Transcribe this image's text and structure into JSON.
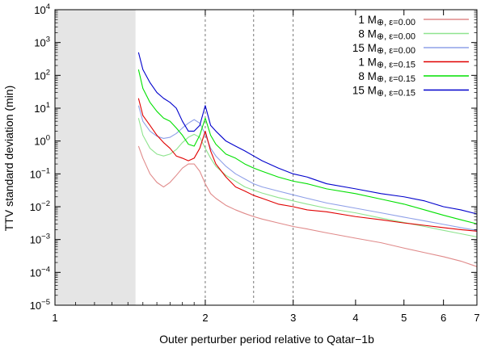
{
  "chart_data": {
    "type": "line",
    "title": "",
    "xlabel": "Outer perturber period relative to Qatar−1b",
    "ylabel": "TTV standard deviation (min)",
    "xscale": "log",
    "yscale": "log",
    "xlim": [
      1,
      7
    ],
    "ylim": [
      1e-05,
      10000.0
    ],
    "grid": false,
    "legend_position": "top-right",
    "x_ticks": [
      {
        "value": 1,
        "label": "1"
      },
      {
        "value": 2,
        "label": "2"
      },
      {
        "value": 3,
        "label": "3"
      },
      {
        "value": 4,
        "label": "4"
      },
      {
        "value": 5,
        "label": "5"
      },
      {
        "value": 6,
        "label": "6"
      },
      {
        "value": 7,
        "label": "7"
      }
    ],
    "y_ticks": [
      {
        "value": 1e-05,
        "base": "10",
        "exp": "−5"
      },
      {
        "value": 0.0001,
        "base": "10",
        "exp": "−4"
      },
      {
        "value": 0.001,
        "base": "10",
        "exp": "−3"
      },
      {
        "value": 0.01,
        "base": "10",
        "exp": "−2"
      },
      {
        "value": 0.1,
        "base": "10",
        "exp": "−1"
      },
      {
        "value": 1,
        "base": "10",
        "exp": "0"
      },
      {
        "value": 10,
        "base": "10",
        "exp": "1"
      },
      {
        "value": 100,
        "base": "10",
        "exp": "2"
      },
      {
        "value": 1000,
        "base": "10",
        "exp": "3"
      },
      {
        "value": 10000,
        "base": "10",
        "exp": "4"
      }
    ],
    "excluded_region": {
      "x_start": 1,
      "x_end": 1.45,
      "color": "#e5e5e5"
    },
    "vertical_lines": [
      2,
      2.5,
      3
    ],
    "series": [
      {
        "name": "1 M⊕, ε=0.00",
        "label_main": "1 M",
        "label_sub": "⊕, ε=0.00",
        "color": "#e08a8a",
        "x": [
          1.47,
          1.5,
          1.55,
          1.6,
          1.65,
          1.7,
          1.75,
          1.8,
          1.85,
          1.9,
          1.95,
          2.0,
          2.05,
          2.1,
          2.2,
          2.3,
          2.4,
          2.5,
          2.6,
          2.8,
          3.0,
          3.2,
          3.5,
          4.0,
          4.5,
          5.0,
          5.5,
          6.0,
          6.5,
          7.0
        ],
        "y": [
          0.7,
          0.3,
          0.1,
          0.055,
          0.04,
          0.055,
          0.09,
          0.15,
          0.2,
          0.2,
          0.12,
          0.05,
          0.025,
          0.018,
          0.011,
          0.008,
          0.0062,
          0.005,
          0.0042,
          0.0032,
          0.0025,
          0.0021,
          0.0016,
          0.0011,
          0.0008,
          0.00055,
          0.0004,
          0.0003,
          0.00022,
          0.00015
        ]
      },
      {
        "name": "8 M⊕, ε=0.00",
        "label_main": "8 M",
        "label_sub": "⊕, ε=0.00",
        "color": "#8fe48f",
        "x": [
          1.47,
          1.5,
          1.55,
          1.6,
          1.65,
          1.7,
          1.75,
          1.8,
          1.85,
          1.9,
          1.95,
          2.0,
          2.05,
          2.1,
          2.2,
          2.3,
          2.4,
          2.5,
          2.6,
          2.8,
          3.0,
          3.2,
          3.5,
          4.0,
          4.5,
          5.0,
          5.5,
          6.0,
          6.5,
          7.0
        ],
        "y": [
          5,
          1.5,
          0.6,
          0.4,
          0.35,
          0.4,
          0.55,
          0.9,
          1.3,
          1.6,
          1.3,
          0.6,
          0.3,
          0.17,
          0.09,
          0.06,
          0.04,
          0.032,
          0.026,
          0.019,
          0.015,
          0.012,
          0.009,
          0.0065,
          0.0045,
          0.0033,
          0.0025,
          0.0019,
          0.0015,
          0.0012
        ]
      },
      {
        "name": "15 M⊕, ε=0.00",
        "label_main": "15 M",
        "label_sub": "⊕, ε=0.00",
        "color": "#8fa0e8",
        "x": [
          1.47,
          1.5,
          1.55,
          1.6,
          1.65,
          1.7,
          1.75,
          1.8,
          1.85,
          1.9,
          1.95,
          2.0,
          2.05,
          2.1,
          2.2,
          2.3,
          2.4,
          2.5,
          2.6,
          2.8,
          3.0,
          3.2,
          3.5,
          4.0,
          4.5,
          5.0,
          5.5,
          6.0,
          6.5,
          7.0
        ],
        "y": [
          12,
          4,
          2,
          1.4,
          1.2,
          1.3,
          1.7,
          2.5,
          3.5,
          4.5,
          3.5,
          1.6,
          0.6,
          0.35,
          0.17,
          0.1,
          0.07,
          0.05,
          0.04,
          0.03,
          0.023,
          0.018,
          0.013,
          0.009,
          0.0065,
          0.0048,
          0.0037,
          0.0029,
          0.0023,
          0.0019
        ]
      },
      {
        "name": "1 M⊕, ε=0.15",
        "label_main": "1 M",
        "label_sub": "⊕, ε=0.15",
        "color": "#e00000",
        "x": [
          1.47,
          1.5,
          1.55,
          1.6,
          1.65,
          1.7,
          1.75,
          1.8,
          1.85,
          1.9,
          1.95,
          2.0,
          2.05,
          2.1,
          2.2,
          2.3,
          2.4,
          2.5,
          2.6,
          2.8,
          3.0,
          3.2,
          3.5,
          4.0,
          4.5,
          5.0,
          5.5,
          6.0,
          6.5,
          7.0
        ],
        "y": [
          20,
          6,
          3,
          1.5,
          0.9,
          0.6,
          0.35,
          0.3,
          0.25,
          0.3,
          0.6,
          2.0,
          0.5,
          0.2,
          0.08,
          0.04,
          0.03,
          0.022,
          0.018,
          0.012,
          0.01,
          0.008,
          0.007,
          0.005,
          0.004,
          0.0032,
          0.0027,
          0.0023,
          0.002,
          0.0018
        ]
      },
      {
        "name": "8 M⊕, ε=0.15",
        "label_main": "8 M",
        "label_sub": "⊕, ε=0.15",
        "color": "#00e000",
        "x": [
          1.47,
          1.5,
          1.55,
          1.6,
          1.65,
          1.7,
          1.75,
          1.8,
          1.85,
          1.9,
          1.95,
          2.0,
          2.05,
          2.1,
          2.2,
          2.3,
          2.4,
          2.5,
          2.6,
          2.8,
          3.0,
          3.2,
          3.5,
          4.0,
          4.5,
          5.0,
          5.5,
          6.0,
          6.5,
          7.0
        ],
        "y": [
          150,
          40,
          15,
          8,
          5,
          4,
          2.5,
          1.5,
          0.8,
          0.7,
          1.5,
          5.0,
          1.5,
          0.8,
          0.4,
          0.3,
          0.2,
          0.15,
          0.12,
          0.08,
          0.06,
          0.05,
          0.035,
          0.025,
          0.017,
          0.012,
          0.008,
          0.0055,
          0.004,
          0.003
        ]
      },
      {
        "name": "15 M⊕, ε=0.15",
        "label_main": "15 M",
        "label_sub": "⊕, ε=0.15",
        "color": "#0000cc",
        "x": [
          1.47,
          1.5,
          1.55,
          1.6,
          1.65,
          1.7,
          1.75,
          1.8,
          1.85,
          1.9,
          1.95,
          2.0,
          2.05,
          2.1,
          2.2,
          2.3,
          2.4,
          2.5,
          2.6,
          2.8,
          3.0,
          3.2,
          3.5,
          4.0,
          4.5,
          5.0,
          5.5,
          6.0,
          6.5,
          7.0
        ],
        "y": [
          500,
          150,
          60,
          30,
          20,
          15,
          10,
          4,
          2,
          2,
          3,
          12,
          3,
          2,
          1.0,
          0.7,
          0.5,
          0.35,
          0.25,
          0.15,
          0.1,
          0.08,
          0.05,
          0.035,
          0.025,
          0.02,
          0.015,
          0.01,
          0.008,
          0.006
        ]
      }
    ]
  }
}
